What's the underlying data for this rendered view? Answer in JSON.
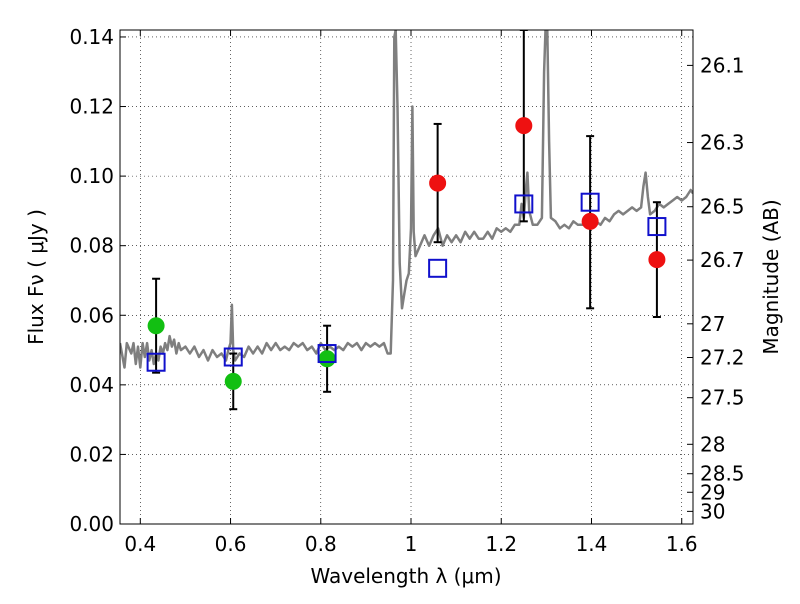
{
  "chart_data": {
    "type": "scatter",
    "title": "",
    "xlabel": "Wavelength  λ (μm)",
    "ylabel": "Flux  Fν  ( μJy )",
    "y2label": "Magnitude (AB)",
    "xlim": [
      0.355,
      1.625
    ],
    "ylim": [
      0.0,
      0.142
    ],
    "grid": true,
    "x_ticks": [
      0.4,
      0.6,
      0.8,
      1.0,
      1.2,
      1.4,
      1.6
    ],
    "x_tick_labels": [
      "0.4",
      "0.6",
      "0.8",
      "1",
      "1.2",
      "1.4",
      "1.6"
    ],
    "y_ticks": [
      0.0,
      0.02,
      0.04,
      0.06,
      0.08,
      0.1,
      0.12,
      0.14
    ],
    "y_tick_labels": [
      "0.00",
      "0.02",
      "0.04",
      "0.06",
      "0.08",
      "0.10",
      "0.12",
      "0.14"
    ],
    "y2_ticks": [
      26.1,
      26.3,
      26.5,
      26.7,
      27,
      27.2,
      27.5,
      28,
      28.5,
      29,
      30
    ],
    "y2_tick_labels": [
      "26.1",
      "26.3",
      "26.5",
      "26.7",
      "27",
      "27.2",
      "27.5",
      "28",
      "28.5",
      "29",
      "30"
    ],
    "colors": {
      "green": "#12bf12",
      "red": "#ee1111",
      "model": "#7f7f7f",
      "squares": "#1010cc",
      "errorbar": "#000000"
    },
    "series": [
      {
        "name": "green-photometry",
        "marker": "circle",
        "points": [
          {
            "x": 0.435,
            "y": 0.057,
            "yerr_low": 0.0435,
            "yerr_high": 0.0705
          },
          {
            "x": 0.606,
            "y": 0.041,
            "yerr_low": 0.033,
            "yerr_high": 0.049
          },
          {
            "x": 0.814,
            "y": 0.0475,
            "yerr_low": 0.038,
            "yerr_high": 0.057
          }
        ]
      },
      {
        "name": "red-photometry",
        "marker": "circle",
        "points": [
          {
            "x": 1.059,
            "y": 0.098,
            "yerr_low": 0.081,
            "yerr_high": 0.115
          },
          {
            "x": 1.25,
            "y": 0.1145,
            "yerr_low": 0.087,
            "yerr_high": 0.142
          },
          {
            "x": 1.397,
            "y": 0.087,
            "yerr_low": 0.062,
            "yerr_high": 0.1115
          },
          {
            "x": 1.545,
            "y": 0.076,
            "yerr_low": 0.0595,
            "yerr_high": 0.0925
          }
        ]
      },
      {
        "name": "model-band-flux",
        "marker": "square",
        "points": [
          {
            "x": 0.435,
            "y": 0.0465
          },
          {
            "x": 0.606,
            "y": 0.048
          },
          {
            "x": 0.814,
            "y": 0.049
          },
          {
            "x": 1.059,
            "y": 0.0735
          },
          {
            "x": 1.25,
            "y": 0.092
          },
          {
            "x": 1.397,
            "y": 0.0925
          },
          {
            "x": 1.545,
            "y": 0.0855
          }
        ]
      },
      {
        "name": "model-spectrum",
        "type": "line",
        "points": [
          [
            0.355,
            0.052
          ],
          [
            0.365,
            0.045
          ],
          [
            0.37,
            0.052
          ],
          [
            0.38,
            0.049
          ],
          [
            0.385,
            0.052
          ],
          [
            0.39,
            0.046
          ],
          [
            0.395,
            0.051
          ],
          [
            0.4,
            0.045
          ],
          [
            0.405,
            0.052
          ],
          [
            0.41,
            0.048
          ],
          [
            0.415,
            0.052
          ],
          [
            0.42,
            0.047
          ],
          [
            0.425,
            0.05
          ],
          [
            0.43,
            0.046
          ],
          [
            0.435,
            0.049
          ],
          [
            0.44,
            0.047
          ],
          [
            0.445,
            0.051
          ],
          [
            0.45,
            0.049
          ],
          [
            0.455,
            0.052
          ],
          [
            0.46,
            0.05
          ],
          [
            0.465,
            0.054
          ],
          [
            0.47,
            0.051
          ],
          [
            0.475,
            0.053
          ],
          [
            0.48,
            0.049
          ],
          [
            0.485,
            0.052
          ],
          [
            0.49,
            0.05
          ],
          [
            0.5,
            0.051
          ],
          [
            0.51,
            0.049
          ],
          [
            0.52,
            0.051
          ],
          [
            0.53,
            0.048
          ],
          [
            0.54,
            0.05
          ],
          [
            0.55,
            0.047
          ],
          [
            0.56,
            0.05
          ],
          [
            0.57,
            0.048
          ],
          [
            0.58,
            0.049
          ],
          [
            0.59,
            0.047
          ],
          [
            0.595,
            0.05
          ],
          [
            0.6,
            0.052
          ],
          [
            0.603,
            0.063
          ],
          [
            0.606,
            0.05
          ],
          [
            0.61,
            0.047
          ],
          [
            0.62,
            0.049
          ],
          [
            0.63,
            0.048
          ],
          [
            0.64,
            0.051
          ],
          [
            0.65,
            0.049
          ],
          [
            0.66,
            0.051
          ],
          [
            0.67,
            0.049
          ],
          [
            0.68,
            0.052
          ],
          [
            0.69,
            0.05
          ],
          [
            0.7,
            0.052
          ],
          [
            0.71,
            0.05
          ],
          [
            0.72,
            0.051
          ],
          [
            0.73,
            0.05
          ],
          [
            0.74,
            0.052
          ],
          [
            0.75,
            0.051
          ],
          [
            0.76,
            0.052
          ],
          [
            0.77,
            0.05
          ],
          [
            0.78,
            0.051
          ],
          [
            0.79,
            0.049
          ],
          [
            0.8,
            0.052
          ],
          [
            0.81,
            0.05
          ],
          [
            0.82,
            0.051
          ],
          [
            0.83,
            0.05
          ],
          [
            0.84,
            0.051
          ],
          [
            0.85,
            0.05
          ],
          [
            0.86,
            0.052
          ],
          [
            0.87,
            0.051
          ],
          [
            0.88,
            0.052
          ],
          [
            0.89,
            0.05
          ],
          [
            0.9,
            0.052
          ],
          [
            0.91,
            0.051
          ],
          [
            0.92,
            0.052
          ],
          [
            0.93,
            0.051
          ],
          [
            0.94,
            0.052
          ],
          [
            0.948,
            0.049
          ],
          [
            0.955,
            0.049
          ],
          [
            0.96,
            0.07
          ],
          [
            0.963,
            0.14
          ],
          [
            0.966,
            0.142
          ],
          [
            0.97,
            0.12
          ],
          [
            0.975,
            0.075
          ],
          [
            0.98,
            0.062
          ],
          [
            0.985,
            0.066
          ],
          [
            0.99,
            0.07
          ],
          [
            0.995,
            0.072
          ],
          [
            1.0,
            0.085
          ],
          [
            1.003,
            0.12
          ],
          [
            1.006,
            0.084
          ],
          [
            1.01,
            0.077
          ],
          [
            1.02,
            0.08
          ],
          [
            1.03,
            0.083
          ],
          [
            1.04,
            0.08
          ],
          [
            1.05,
            0.083
          ],
          [
            1.06,
            0.085
          ],
          [
            1.07,
            0.08
          ],
          [
            1.08,
            0.083
          ],
          [
            1.09,
            0.081
          ],
          [
            1.1,
            0.083
          ],
          [
            1.11,
            0.081
          ],
          [
            1.12,
            0.084
          ],
          [
            1.13,
            0.082
          ],
          [
            1.14,
            0.084
          ],
          [
            1.15,
            0.082
          ],
          [
            1.16,
            0.082
          ],
          [
            1.17,
            0.084
          ],
          [
            1.18,
            0.082
          ],
          [
            1.19,
            0.085
          ],
          [
            1.2,
            0.084
          ],
          [
            1.21,
            0.085
          ],
          [
            1.22,
            0.084
          ],
          [
            1.23,
            0.086
          ],
          [
            1.24,
            0.086
          ],
          [
            1.245,
            0.092
          ],
          [
            1.25,
            0.088
          ],
          [
            1.255,
            0.097
          ],
          [
            1.258,
            0.101
          ],
          [
            1.262,
            0.09
          ],
          [
            1.27,
            0.086
          ],
          [
            1.28,
            0.086
          ],
          [
            1.29,
            0.088
          ],
          [
            1.295,
            0.13
          ],
          [
            1.298,
            0.142
          ],
          [
            1.302,
            0.142
          ],
          [
            1.306,
            0.11
          ],
          [
            1.31,
            0.088
          ],
          [
            1.32,
            0.087
          ],
          [
            1.33,
            0.085
          ],
          [
            1.34,
            0.086
          ],
          [
            1.35,
            0.085
          ],
          [
            1.36,
            0.087
          ],
          [
            1.37,
            0.086
          ],
          [
            1.38,
            0.086
          ],
          [
            1.39,
            0.087
          ],
          [
            1.4,
            0.086
          ],
          [
            1.41,
            0.087
          ],
          [
            1.42,
            0.086
          ],
          [
            1.43,
            0.088
          ],
          [
            1.44,
            0.087
          ],
          [
            1.45,
            0.089
          ],
          [
            1.46,
            0.09
          ],
          [
            1.47,
            0.089
          ],
          [
            1.48,
            0.09
          ],
          [
            1.49,
            0.091
          ],
          [
            1.5,
            0.09
          ],
          [
            1.51,
            0.091
          ],
          [
            1.515,
            0.097
          ],
          [
            1.52,
            0.101
          ],
          [
            1.525,
            0.094
          ],
          [
            1.53,
            0.089
          ],
          [
            1.54,
            0.09
          ],
          [
            1.55,
            0.092
          ],
          [
            1.56,
            0.091
          ],
          [
            1.57,
            0.092
          ],
          [
            1.58,
            0.093
          ],
          [
            1.59,
            0.094
          ],
          [
            1.6,
            0.093
          ],
          [
            1.61,
            0.094
          ],
          [
            1.62,
            0.096
          ],
          [
            1.625,
            0.095
          ]
        ]
      }
    ]
  }
}
